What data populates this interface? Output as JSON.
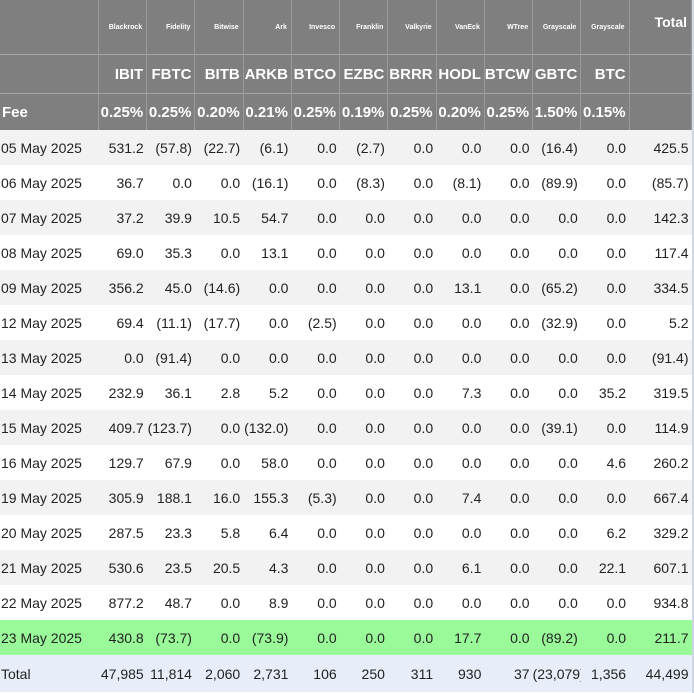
{
  "providers": [
    "Blackrock",
    "Fidelity",
    "Bitwise",
    "Ark",
    "Invesco",
    "Franklin",
    "Valkyrie",
    "VanEck",
    "WTree",
    "Grayscale",
    "Grayscale"
  ],
  "total_label": "Total",
  "tickers": [
    "IBIT",
    "FBTC",
    "BITB",
    "ARKB",
    "BTCO",
    "EZBC",
    "BRRR",
    "HODL",
    "BTCW",
    "GBTC",
    "BTC"
  ],
  "fee_label": "Fee",
  "fees": [
    "0.25%",
    "0.25%",
    "0.20%",
    "0.21%",
    "0.25%",
    "0.19%",
    "0.25%",
    "0.20%",
    "0.25%",
    "1.50%",
    "0.15%"
  ],
  "rows": [
    {
      "date": "05 May 2025",
      "values": [
        "531.2",
        "(57.8)",
        "(22.7)",
        "(6.1)",
        "0.0",
        "(2.7)",
        "0.0",
        "0.0",
        "0.0",
        "(16.4)",
        "0.0"
      ],
      "total": "425.5"
    },
    {
      "date": "06 May 2025",
      "values": [
        "36.7",
        "0.0",
        "0.0",
        "(16.1)",
        "0.0",
        "(8.3)",
        "0.0",
        "(8.1)",
        "0.0",
        "(89.9)",
        "0.0"
      ],
      "total": "(85.7)"
    },
    {
      "date": "07 May 2025",
      "values": [
        "37.2",
        "39.9",
        "10.5",
        "54.7",
        "0.0",
        "0.0",
        "0.0",
        "0.0",
        "0.0",
        "0.0",
        "0.0"
      ],
      "total": "142.3"
    },
    {
      "date": "08 May 2025",
      "values": [
        "69.0",
        "35.3",
        "0.0",
        "13.1",
        "0.0",
        "0.0",
        "0.0",
        "0.0",
        "0.0",
        "0.0",
        "0.0"
      ],
      "total": "117.4"
    },
    {
      "date": "09 May 2025",
      "values": [
        "356.2",
        "45.0",
        "(14.6)",
        "0.0",
        "0.0",
        "0.0",
        "0.0",
        "13.1",
        "0.0",
        "(65.2)",
        "0.0"
      ],
      "total": "334.5"
    },
    {
      "date": "12 May 2025",
      "values": [
        "69.4",
        "(11.1)",
        "(17.7)",
        "0.0",
        "(2.5)",
        "0.0",
        "0.0",
        "0.0",
        "0.0",
        "(32.9)",
        "0.0"
      ],
      "total": "5.2"
    },
    {
      "date": "13 May 2025",
      "values": [
        "0.0",
        "(91.4)",
        "0.0",
        "0.0",
        "0.0",
        "0.0",
        "0.0",
        "0.0",
        "0.0",
        "0.0",
        "0.0"
      ],
      "total": "(91.4)"
    },
    {
      "date": "14 May 2025",
      "values": [
        "232.9",
        "36.1",
        "2.8",
        "5.2",
        "0.0",
        "0.0",
        "0.0",
        "7.3",
        "0.0",
        "0.0",
        "35.2"
      ],
      "total": "319.5"
    },
    {
      "date": "15 May 2025",
      "values": [
        "409.7",
        "(123.7)",
        "0.0",
        "(132.0)",
        "0.0",
        "0.0",
        "0.0",
        "0.0",
        "0.0",
        "(39.1)",
        "0.0"
      ],
      "total": "114.9"
    },
    {
      "date": "16 May 2025",
      "values": [
        "129.7",
        "67.9",
        "0.0",
        "58.0",
        "0.0",
        "0.0",
        "0.0",
        "0.0",
        "0.0",
        "0.0",
        "4.6"
      ],
      "total": "260.2"
    },
    {
      "date": "19 May 2025",
      "values": [
        "305.9",
        "188.1",
        "16.0",
        "155.3",
        "(5.3)",
        "0.0",
        "0.0",
        "7.4",
        "0.0",
        "0.0",
        "0.0"
      ],
      "total": "667.4"
    },
    {
      "date": "20 May 2025",
      "values": [
        "287.5",
        "23.3",
        "5.8",
        "6.4",
        "0.0",
        "0.0",
        "0.0",
        "0.0",
        "0.0",
        "0.0",
        "6.2"
      ],
      "total": "329.2"
    },
    {
      "date": "21 May 2025",
      "values": [
        "530.6",
        "23.5",
        "20.5",
        "4.3",
        "0.0",
        "0.0",
        "0.0",
        "6.1",
        "0.0",
        "0.0",
        "22.1"
      ],
      "total": "607.1"
    },
    {
      "date": "22 May 2025",
      "values": [
        "877.2",
        "48.7",
        "0.0",
        "8.9",
        "0.0",
        "0.0",
        "0.0",
        "0.0",
        "0.0",
        "0.0",
        "0.0"
      ],
      "total": "934.8"
    },
    {
      "date": "23 May 2025",
      "values": [
        "430.8",
        "(73.7)",
        "0.0",
        "(73.9)",
        "0.0",
        "0.0",
        "0.0",
        "17.7",
        "0.0",
        "(89.2)",
        "0.0"
      ],
      "total": "211.7",
      "highlight": true
    }
  ],
  "totals": {
    "label": "Total",
    "values": [
      "47,985",
      "11,814",
      "2,060",
      "2,731",
      "106",
      "250",
      "311",
      "930",
      "37",
      "(23,079)",
      "1,356"
    ],
    "total": "44,499"
  },
  "colors": {
    "header_bg": "#7f7f7f",
    "header_text": "#ffffff",
    "row_alt": "#f2f2f2",
    "highlight_row": "#9afa9a",
    "total_row": "#e8eef9",
    "negative": "#ff0000"
  }
}
